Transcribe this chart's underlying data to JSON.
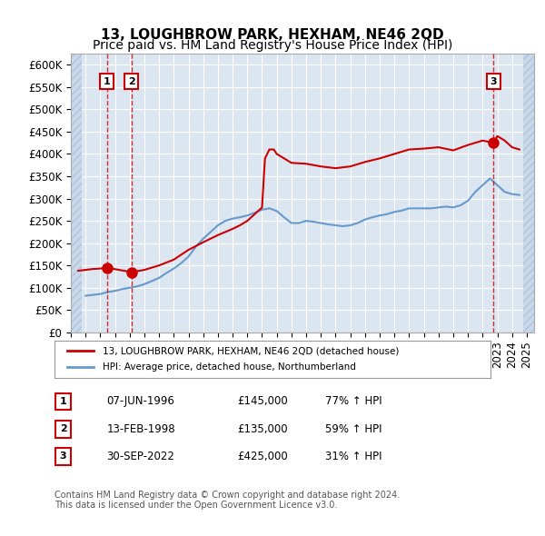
{
  "title": "13, LOUGHBROW PARK, HEXHAM, NE46 2QD",
  "subtitle": "Price paid vs. HM Land Registry's House Price Index (HPI)",
  "ylabel": "",
  "ylim": [
    0,
    625000
  ],
  "yticks": [
    0,
    50000,
    100000,
    150000,
    200000,
    250000,
    300000,
    350000,
    400000,
    450000,
    500000,
    550000,
    600000
  ],
  "ytick_labels": [
    "£0",
    "£50K",
    "£100K",
    "£150K",
    "£200K",
    "£250K",
    "£300K",
    "£350K",
    "£400K",
    "£450K",
    "£500K",
    "£550K",
    "£600K"
  ],
  "xlim_start": 1994.0,
  "xlim_end": 2025.5,
  "background_color": "#ffffff",
  "plot_bg_color": "#dce6f1",
  "hatch_color": "#c0cfe0",
  "grid_color": "#ffffff",
  "sale_points": [
    {
      "date": 1996.44,
      "price": 145000,
      "label": "1"
    },
    {
      "date": 1998.12,
      "price": 135000,
      "label": "2"
    },
    {
      "date": 2022.75,
      "price": 425000,
      "label": "3"
    }
  ],
  "sale_color": "#cc0000",
  "hpi_color": "#6699cc",
  "legend_sale_label": "13, LOUGHBROW PARK, HEXHAM, NE46 2QD (detached house)",
  "legend_hpi_label": "HPI: Average price, detached house, Northumberland",
  "table_rows": [
    {
      "num": "1",
      "date": "07-JUN-1996",
      "price": "£145,000",
      "change": "77% ↑ HPI"
    },
    {
      "num": "2",
      "date": "13-FEB-1998",
      "price": "£135,000",
      "change": "59% ↑ HPI"
    },
    {
      "num": "3",
      "date": "30-SEP-2022",
      "price": "£425,000",
      "change": "31% ↑ HPI"
    }
  ],
  "footer": "Contains HM Land Registry data © Crown copyright and database right 2024.\nThis data is licensed under the Open Government Licence v3.0.",
  "title_fontsize": 11,
  "subtitle_fontsize": 10,
  "tick_fontsize": 8.5,
  "hpi_line_data_x": [
    1995.0,
    1995.5,
    1996.0,
    1996.5,
    1997.0,
    1997.5,
    1998.0,
    1998.5,
    1999.0,
    1999.5,
    2000.0,
    2000.5,
    2001.0,
    2001.5,
    2002.0,
    2002.5,
    2003.0,
    2003.5,
    2004.0,
    2004.5,
    2005.0,
    2005.5,
    2006.0,
    2006.5,
    2007.0,
    2007.5,
    2008.0,
    2008.5,
    2009.0,
    2009.5,
    2010.0,
    2010.5,
    2011.0,
    2011.5,
    2012.0,
    2012.5,
    2013.0,
    2013.5,
    2014.0,
    2014.5,
    2015.0,
    2015.5,
    2016.0,
    2016.5,
    2017.0,
    2017.5,
    2018.0,
    2018.5,
    2019.0,
    2019.5,
    2020.0,
    2020.5,
    2021.0,
    2021.5,
    2022.0,
    2022.5,
    2023.0,
    2023.5,
    2024.0,
    2024.5
  ],
  "hpi_line_data_y": [
    82000,
    84000,
    86000,
    90000,
    93000,
    97000,
    100000,
    103000,
    108000,
    115000,
    122000,
    133000,
    143000,
    155000,
    170000,
    192000,
    210000,
    225000,
    240000,
    250000,
    255000,
    258000,
    262000,
    268000,
    275000,
    278000,
    272000,
    258000,
    245000,
    245000,
    250000,
    248000,
    245000,
    242000,
    240000,
    238000,
    240000,
    245000,
    253000,
    258000,
    262000,
    265000,
    270000,
    273000,
    278000,
    278000,
    278000,
    278000,
    280000,
    282000,
    280000,
    285000,
    295000,
    315000,
    330000,
    345000,
    330000,
    315000,
    310000,
    308000
  ],
  "sale_line_data_x": [
    1994.5,
    1995.0,
    1995.5,
    1996.0,
    1996.44,
    1998.12,
    1999.0,
    2000.0,
    2001.0,
    2002.0,
    2003.0,
    2004.0,
    2005.0,
    2005.5,
    2006.0,
    2006.5,
    2007.0,
    2007.2,
    2007.5,
    2007.8,
    2008.0,
    2009.0,
    2010.0,
    2011.0,
    2012.0,
    2013.0,
    2014.0,
    2015.0,
    2016.0,
    2017.0,
    2018.0,
    2019.0,
    2020.0,
    2021.0,
    2022.0,
    2022.75,
    2023.0,
    2023.5,
    2024.0,
    2024.5
  ],
  "sale_line_data_y": [
    138000,
    140000,
    142000,
    143000,
    145000,
    135000,
    140000,
    150000,
    163000,
    185000,
    202000,
    218000,
    232000,
    240000,
    250000,
    265000,
    280000,
    390000,
    410000,
    410000,
    400000,
    380000,
    378000,
    372000,
    368000,
    372000,
    382000,
    390000,
    400000,
    410000,
    412000,
    415000,
    408000,
    420000,
    430000,
    425000,
    440000,
    430000,
    415000,
    410000
  ]
}
